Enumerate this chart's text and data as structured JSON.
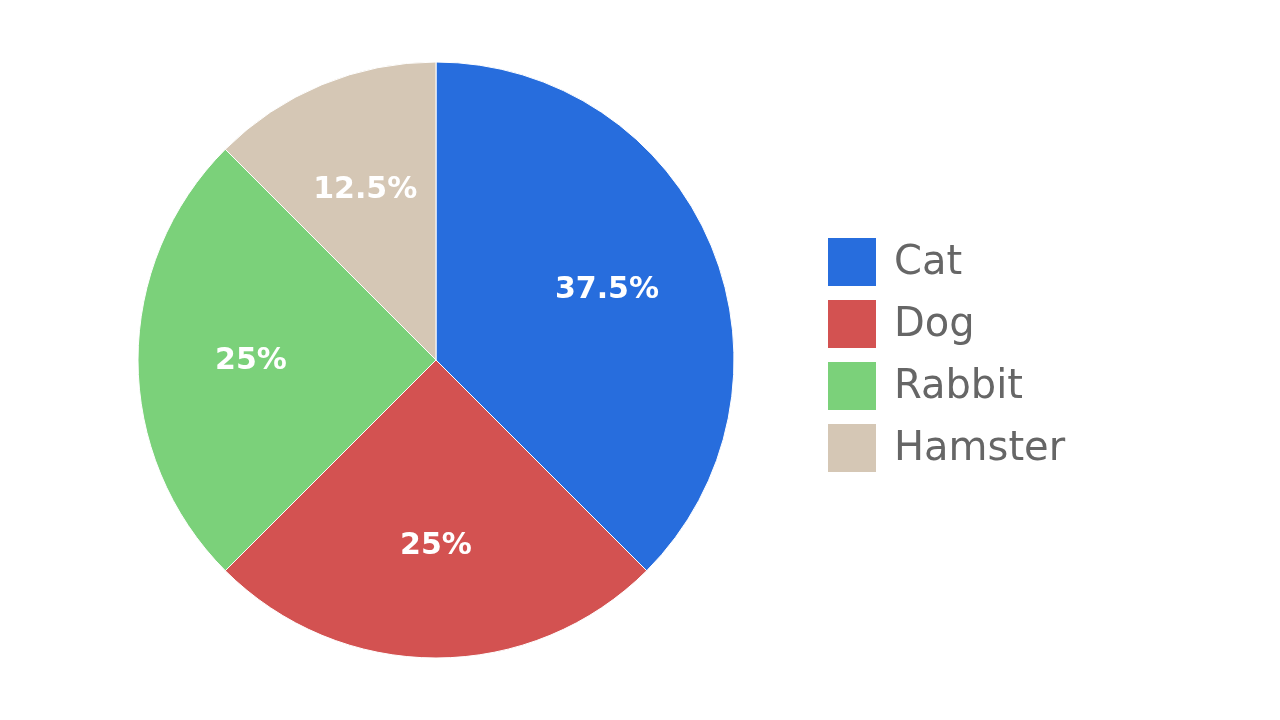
{
  "chart_data": {
    "type": "pie",
    "categories": [
      "Cat",
      "Dog",
      "Rabbit",
      "Hamster"
    ],
    "values": [
      37.5,
      25,
      25,
      12.5
    ],
    "colors": [
      "#276ddd",
      "#d35251",
      "#7bd17a",
      "#d5c7b5"
    ],
    "value_labels": [
      "37.5%",
      "25%",
      "25%",
      "12.5%"
    ],
    "legend": "right"
  }
}
